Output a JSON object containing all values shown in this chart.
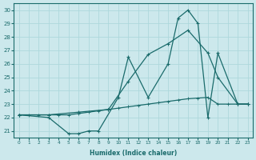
{
  "xlabel": "Humidex (Indice chaleur)",
  "bg_color": "#cce8ec",
  "grid_color": "#add8dc",
  "line_color": "#1a6b6b",
  "xlim": [
    -0.5,
    23.5
  ],
  "ylim": [
    20.5,
    30.5
  ],
  "yticks": [
    21,
    22,
    23,
    24,
    25,
    26,
    27,
    28,
    29,
    30
  ],
  "xticks": [
    0,
    1,
    2,
    3,
    4,
    5,
    6,
    7,
    8,
    9,
    10,
    11,
    12,
    13,
    14,
    15,
    16,
    17,
    18,
    19,
    20,
    21,
    22,
    23
  ],
  "line1_x": [
    0,
    1,
    2,
    3,
    4,
    5,
    6,
    7,
    8,
    9,
    10,
    11,
    12,
    13,
    14,
    15,
    16,
    17,
    18,
    19,
    20,
    21,
    22,
    23
  ],
  "line1_y": [
    22.2,
    22.2,
    22.2,
    22.2,
    22.2,
    22.2,
    22.3,
    22.4,
    22.5,
    22.6,
    22.7,
    22.8,
    22.9,
    23.0,
    23.1,
    23.2,
    23.3,
    23.4,
    23.45,
    23.5,
    23.0,
    23.0,
    23.0,
    23.0
  ],
  "line2_x": [
    0,
    3,
    5,
    6,
    7,
    8,
    10,
    11,
    13,
    15,
    16,
    17,
    18,
    19,
    20,
    22,
    23
  ],
  "line2_y": [
    22.2,
    22.0,
    20.8,
    20.8,
    21.0,
    21.0,
    23.5,
    26.5,
    23.5,
    26.0,
    29.4,
    30.0,
    29.0,
    22.0,
    26.8,
    23.0,
    23.0
  ],
  "line3_x": [
    0,
    3,
    6,
    9,
    11,
    13,
    15,
    17,
    19,
    20,
    22,
    23
  ],
  "line3_y": [
    22.2,
    22.2,
    22.4,
    22.6,
    24.7,
    26.7,
    27.5,
    28.5,
    26.8,
    25.0,
    23.0,
    23.0
  ]
}
